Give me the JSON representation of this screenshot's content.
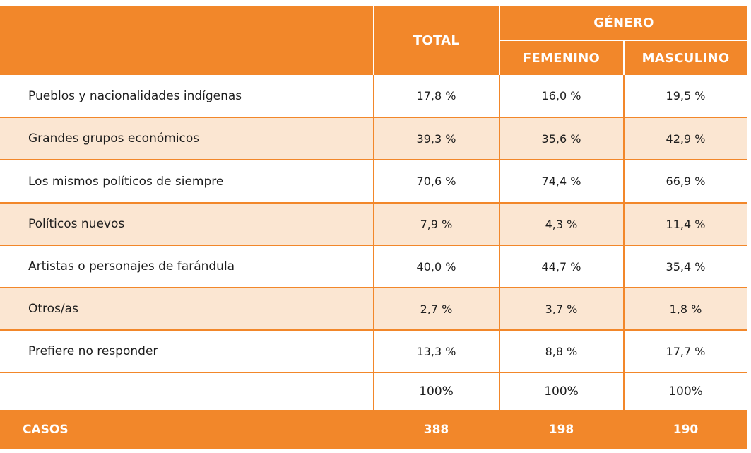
{
  "header": {
    "total": "TOTAL",
    "genero": "GÉNERO",
    "femenino": "FEMENINO",
    "masculino": "MASCULINO"
  },
  "rows": [
    {
      "label": "Pueblos y nacionalidades indígenas",
      "total": "17,8 %",
      "femenino": "16,0 %",
      "masculino": "19,5 %"
    },
    {
      "label": "Grandes grupos económicos",
      "total": "39,3 %",
      "femenino": "35,6 %",
      "masculino": "42,9 %"
    },
    {
      "label": "Los mismos políticos de siempre",
      "total": "70,6 %",
      "femenino": "74,4 %",
      "masculino": "66,9 %"
    },
    {
      "label": "Políticos nuevos",
      "total": "7,9 %",
      "femenino": "4,3 %",
      "masculino": "11,4 %"
    },
    {
      "label": "Artistas o personajes de farándula",
      "total": "40,0 %",
      "femenino": "44,7 %",
      "masculino": "35,4 %"
    },
    {
      "label": "Otros/as",
      "total": "2,7 %",
      "femenino": "3,7 %",
      "masculino": "1,8 %"
    },
    {
      "label": "Prefiere no responder",
      "total": "13,3 %",
      "femenino": "8,8 %",
      "masculino": "17,7 %"
    }
  ],
  "totals": {
    "total": "100%",
    "femenino": "100%",
    "masculino": "100%"
  },
  "footer": {
    "label": "CASOS",
    "total": "388",
    "femenino": "198",
    "masculino": "190"
  },
  "colors": {
    "accent": "#f2872a",
    "shade": "#fbe6d2"
  }
}
